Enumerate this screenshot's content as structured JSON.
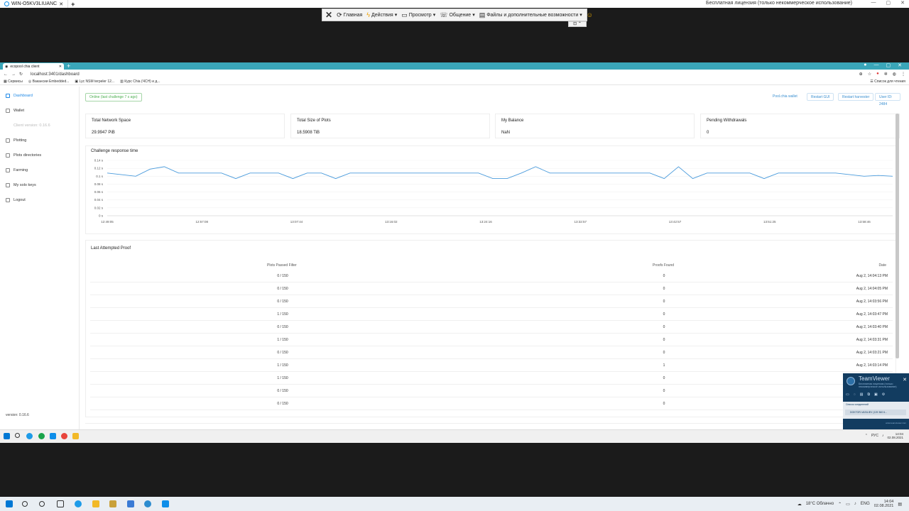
{
  "teamviewer": {
    "tab_title": "WIN-O5KV3LIUANC",
    "license_text": "Бесплатная лицензия (только некоммерческое использование)",
    "toolbar": [
      {
        "label": "Главная",
        "icon": "home-icon"
      },
      {
        "label": "Действия",
        "icon": "lightning-icon",
        "dropdown": true
      },
      {
        "label": "Просмотр",
        "icon": "monitor-icon",
        "dropdown": true
      },
      {
        "label": "Общение",
        "icon": "chat-icon",
        "dropdown": true
      },
      {
        "label": "Файлы и дополнительные возможности",
        "icon": "files-icon",
        "dropdown": true
      }
    ]
  },
  "browser": {
    "tab_title": "ecopool chia client",
    "url": "localhost:3401/dashboard",
    "bookmarks": [
      "Сервисы",
      "Вакансии Embedded...",
      "Lyc NSM terpeler 12...",
      "Курс Chia (ЧСН) и д..."
    ],
    "bookmarks_right": "Список для чтения"
  },
  "app": {
    "nav": [
      {
        "label": "Dashboard",
        "name": "sidebar-item-dashboard",
        "icon": "dashboard-icon",
        "active": true
      },
      {
        "label": "Wallet",
        "name": "sidebar-item-wallet",
        "icon": "wallet-icon"
      },
      {
        "label": "Client version: 0.16.6",
        "name": "sidebar-client-version",
        "icon": "",
        "disabled": true
      },
      {
        "label": "Plotting",
        "name": "sidebar-item-plotting",
        "icon": "plotting-icon"
      },
      {
        "label": "Plots directories",
        "name": "sidebar-item-plots-directories",
        "icon": "folder-icon"
      },
      {
        "label": "Farming",
        "name": "sidebar-item-farming",
        "icon": "farming-icon"
      },
      {
        "label": "My solo keys",
        "name": "sidebar-item-solo-keys",
        "icon": "key-icon"
      },
      {
        "label": "Logout",
        "name": "sidebar-item-logout",
        "icon": "logout-icon"
      }
    ],
    "version": "version: 0.16.6",
    "status_chip": "Online (last challenge 7 s ago)",
    "pool_link": "Pool.chia wallet",
    "buttons": [
      "Restart GUI",
      "Restart harvester",
      "User ID: 2484"
    ],
    "stats": [
      {
        "title": "Total Network Space",
        "value": "29.9947 PiB"
      },
      {
        "title": "Total Size of Plots",
        "value": "18.5908 TiB"
      },
      {
        "title": "My Balance",
        "value": "NaN"
      },
      {
        "title": "Pending Withdrawals",
        "value": "0"
      }
    ]
  },
  "chart_data": {
    "type": "line",
    "title": "Challenge response time",
    "y_ticks": [
      "0.14 s",
      "0.12 s",
      "0.1 s",
      "0.08 s",
      "0.06 s",
      "0.04 s",
      "0.02 s",
      "0 s"
    ],
    "x_ticks": [
      "12:49:05",
      "12:57:08",
      "13:07:44",
      "13:16:02",
      "13:24:16",
      "13:32:57",
      "13:42:57",
      "13:51:25",
      "13:58:46"
    ],
    "ylim": [
      0,
      0.14
    ],
    "series": [
      {
        "values": [
          0.108,
          0.104,
          0.1,
          0.118,
          0.124,
          0.108,
          0.108,
          0.108,
          0.108,
          0.094,
          0.108,
          0.108,
          0.108,
          0.094,
          0.108,
          0.108,
          0.094,
          0.108,
          0.108,
          0.108,
          0.108,
          0.108,
          0.108,
          0.108,
          0.108,
          0.108,
          0.108,
          0.094,
          0.094,
          0.108,
          0.124,
          0.108,
          0.108,
          0.108,
          0.108,
          0.108,
          0.108,
          0.108,
          0.108,
          0.094,
          0.124,
          0.094,
          0.108,
          0.108,
          0.108,
          0.108,
          0.094,
          0.108,
          0.108,
          0.108,
          0.108,
          0.108,
          0.104,
          0.1,
          0.102,
          0.1
        ]
      }
    ]
  },
  "proofs": {
    "title": "Last Attempted Proof",
    "headers": [
      "Plots Passed Filter",
      "Proofs Found",
      "Date"
    ],
    "rows": [
      [
        "0 / 150",
        "0",
        "Aug 2, 14:04:13 PM"
      ],
      [
        "0 / 150",
        "0",
        "Aug 2, 14:04:05 PM"
      ],
      [
        "0 / 150",
        "0",
        "Aug 2, 14:03:56 PM"
      ],
      [
        "1 / 150",
        "0",
        "Aug 2, 14:03:47 PM"
      ],
      [
        "0 / 150",
        "0",
        "Aug 2, 14:03:40 PM"
      ],
      [
        "1 / 150",
        "0",
        "Aug 2, 14:03:31 PM"
      ],
      [
        "0 / 150",
        "0",
        "Aug 2, 14:03:21 PM"
      ],
      [
        "1 / 150",
        "1",
        "Aug 2, 14:03:14 PM"
      ],
      [
        "1 / 150",
        "0",
        ""
      ],
      [
        "0 / 150",
        "0",
        ""
      ],
      [
        "0 / 150",
        "0",
        ""
      ]
    ]
  },
  "teamviewer_popup": {
    "title": "TeamViewer",
    "subtitle": "Бесплатная лицензия (только некоммерческое использование)",
    "list_header": "Список соединений",
    "list_item": "DOKTOR-VASILIEV (129 360 6...",
    "footer": "www.teamviewer.com"
  },
  "inner_taskbar": {
    "lang": "РУС",
    "time": "14:04",
    "date": "02.08.2021"
  },
  "host_taskbar": {
    "weather": "18°C Облачно",
    "lang": "ENG",
    "time": "14:04",
    "date": "02.08.2021"
  }
}
